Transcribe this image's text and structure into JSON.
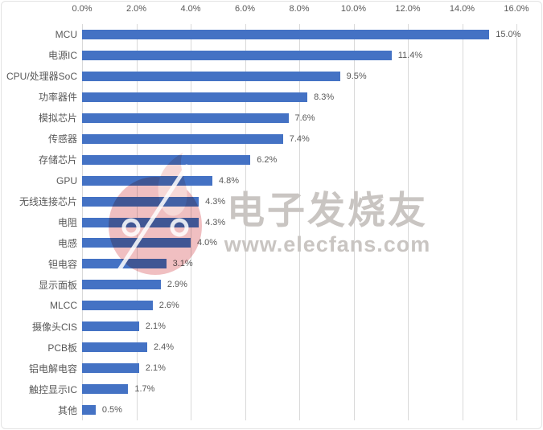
{
  "chart_data": {
    "type": "bar",
    "orientation": "horizontal",
    "title": "",
    "xlabel": "",
    "ylabel": "",
    "xlim": [
      0,
      16
    ],
    "grid": true,
    "bar_color": "#4472c4",
    "gridline_color": "#d9d9d9",
    "label_color": "#595959",
    "x_ticks": [
      "0.0%",
      "2.0%",
      "4.0%",
      "6.0%",
      "8.0%",
      "10.0%",
      "12.0%",
      "14.0%",
      "16.0%"
    ],
    "x_tick_values": [
      0,
      2,
      4,
      6,
      8,
      10,
      12,
      14,
      16
    ],
    "categories": [
      "MCU",
      "电源IC",
      "CPU/处理器SoC",
      "功率器件",
      "模拟芯片",
      "传感器",
      "存储芯片",
      "GPU",
      "无线连接芯片",
      "电阻",
      "电感",
      "钽电容",
      "显示面板",
      "MLCC",
      "摄像头CIS",
      "PCB板",
      "铝电解电容",
      "触控显示IC",
      "其他"
    ],
    "values": [
      15.0,
      11.4,
      9.5,
      8.3,
      7.6,
      7.4,
      6.2,
      4.8,
      4.3,
      4.3,
      4.0,
      3.1,
      2.9,
      2.6,
      2.1,
      2.4,
      2.1,
      1.7,
      0.5
    ],
    "value_labels": [
      "15.0%",
      "11.4%",
      "9.5%",
      "8.3%",
      "7.6%",
      "7.4%",
      "6.2%",
      "4.8%",
      "4.3%",
      "4.3%",
      "4.0%",
      "3.1%",
      "2.9%",
      "2.6%",
      "2.1%",
      "2.4%",
      "2.1%",
      "1.7%",
      "0.5%"
    ]
  },
  "watermark": {
    "brand_text": "电子发烧友",
    "url_text": "www.elecfans.com",
    "text_color": "#c9c5c2",
    "flame_body_color": "#f0bfc1",
    "flame_tip_color": "#f7d9d7"
  }
}
